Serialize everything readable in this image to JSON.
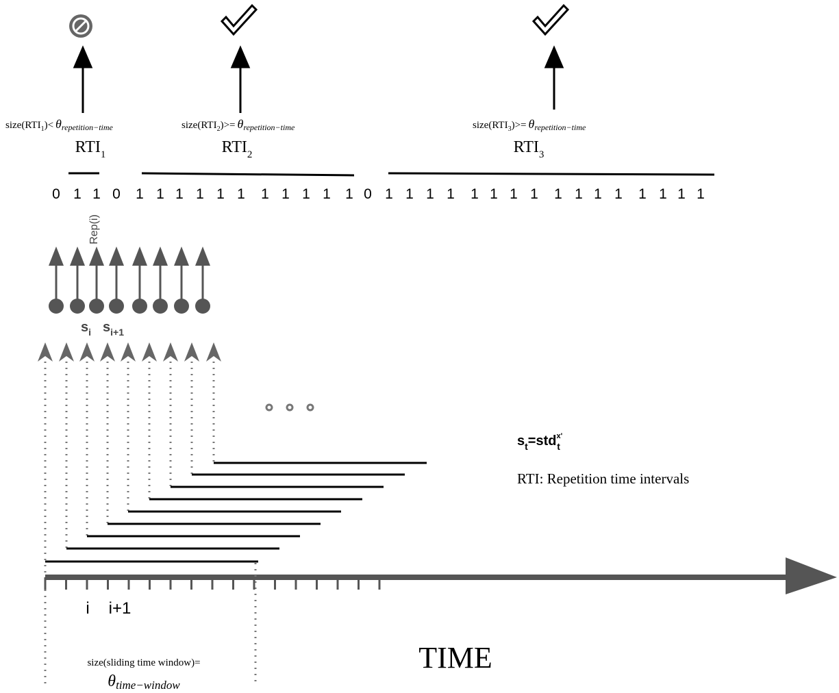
{
  "rti": [
    {
      "condition": {
        "prefix": "size(RTI",
        "index": "1",
        "relation": ")<",
        "theta": "θ",
        "theta_sub": "repetition−time"
      },
      "label": "RTI",
      "index": "1"
    },
    {
      "condition": {
        "prefix": "size(RTI",
        "index": "2",
        "relation": ")>=",
        "theta": "θ",
        "theta_sub": "repetition−time"
      },
      "label": "RTI",
      "index": "2"
    },
    {
      "condition": {
        "prefix": "size(RTI",
        "index": "3",
        "relation": ")>=",
        "theta": "θ",
        "theta_sub": "repetition−time"
      },
      "label": "RTI",
      "index": "3"
    }
  ],
  "sequence": [
    0,
    1,
    1,
    0,
    1,
    1,
    1,
    1,
    1,
    1,
    1,
    1,
    1,
    1,
    1,
    0,
    1,
    1,
    1,
    1,
    1,
    1,
    1,
    1,
    1,
    1,
    1,
    1,
    1,
    1,
    1,
    1
  ],
  "rep_label": "Rep(i)",
  "s_i": {
    "base": "s",
    "sub": "i"
  },
  "s_i1": {
    "base": "s",
    "sub": "i+1"
  },
  "formula": {
    "base": "s",
    "sub": "t",
    "eq": "=std",
    "sup": "x'",
    "sub2": "t"
  },
  "legend": "RTI: Repetition time intervals",
  "axis": {
    "title": "TIME",
    "tick_labels": [
      "i",
      "i+1"
    ],
    "window": {
      "text": "size(sliding time window)=",
      "theta": "θ",
      "theta_sub": "time−window"
    }
  }
}
